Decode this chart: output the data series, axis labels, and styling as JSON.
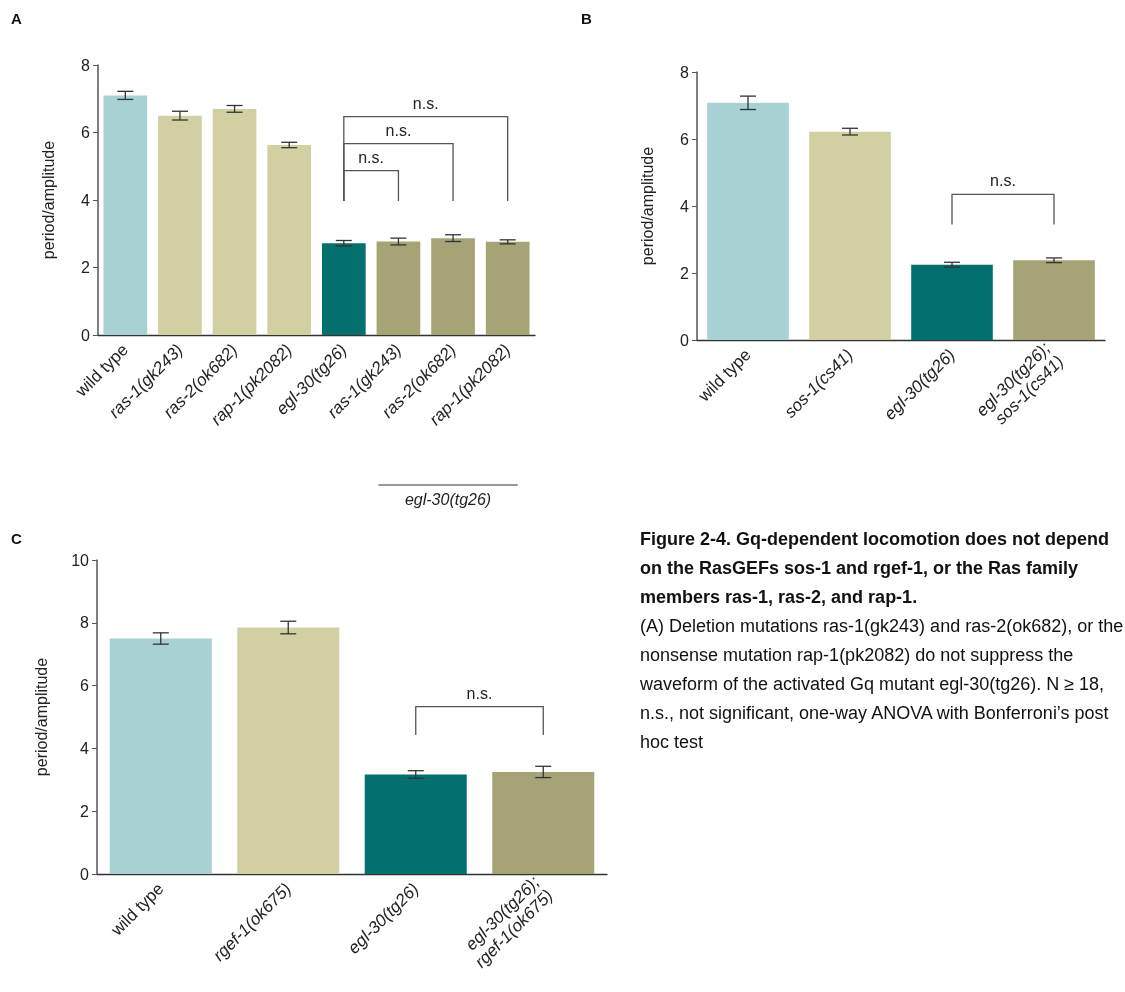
{
  "chart_data": [
    {
      "type": "bar",
      "title": "A",
      "ylabel": "period/amplitude",
      "categories": [
        "wild type",
        "ras-1(gk243)",
        "ras-2(ok682)",
        "rap-1(pk2082)",
        "egl-30(tg26)",
        "ras-1(gk243)",
        "ras-2(ok682)",
        "rap-1(pk2082)"
      ],
      "values": [
        7.1,
        6.5,
        6.7,
        5.63,
        2.72,
        2.77,
        2.87,
        2.76
      ],
      "errors": [
        0.12,
        0.13,
        0.1,
        0.08,
        0.08,
        0.1,
        0.1,
        0.06
      ],
      "colors": [
        "#a7d1d2",
        "#d2d0a3",
        "#d2d0a3",
        "#d2d0a3",
        "#03706f",
        "#a6a377",
        "#a6a377",
        "#a6a377"
      ],
      "ylim": [
        0,
        8
      ],
      "yticks": [
        0,
        2,
        4,
        6,
        8
      ],
      "grid": false,
      "annotations": [
        "n.s.",
        "n.s.",
        "n.s.",
        "egl-30(tg26)"
      ]
    },
    {
      "type": "bar",
      "title": "B",
      "ylabel": "period/amplitude",
      "categories": [
        "wild type",
        "sos-1(cs41)",
        "egl-30(tg26)",
        "egl-30(tg26); sos-1(cs41)"
      ],
      "values": [
        7.08,
        6.22,
        2.25,
        2.38
      ],
      "errors": [
        0.2,
        0.1,
        0.07,
        0.07
      ],
      "colors": [
        "#a7d1d2",
        "#d2d0a3",
        "#03706f",
        "#a6a377"
      ],
      "ylim": [
        0,
        8
      ],
      "yticks": [
        0,
        2,
        4,
        6,
        8
      ],
      "grid": false,
      "annotations": [
        "n.s."
      ]
    },
    {
      "type": "bar",
      "title": "C",
      "ylabel": "period/amplitude",
      "categories": [
        "wild type",
        "rgef-1(ok675)",
        "egl-30(tg26)",
        "egl-30(tg26); rgef-1(ok675)"
      ],
      "values": [
        7.5,
        7.85,
        3.17,
        3.25
      ],
      "errors": [
        0.18,
        0.2,
        0.12,
        0.18
      ],
      "colors": [
        "#a7d1d2",
        "#d2d0a3",
        "#03706f",
        "#a6a377"
      ],
      "ylim": [
        0,
        10
      ],
      "yticks": [
        0,
        2,
        4,
        6,
        8,
        10
      ],
      "grid": false,
      "annotations": [
        "n.s."
      ]
    },
    {
      "type": "other",
      "title": "Figure 2-4. Gq-dependent locomotion does not depend on the RasGEFs sos-1 and rgef-1, or the Ras family members ras-1, ras-2, and rap-1.",
      "annotations": [
        "(A) Deletion mutations ras-1(gk243) and ras-2(ok682), or the nonsense mutation rap-1(pk2082) do not suppress the waveform of the activated Gq mutant egl-30(tg26). N ≥ 18, n.s., not significant, one-way ANOVA with Bonferroni’s post hoc test"
      ]
    }
  ]
}
